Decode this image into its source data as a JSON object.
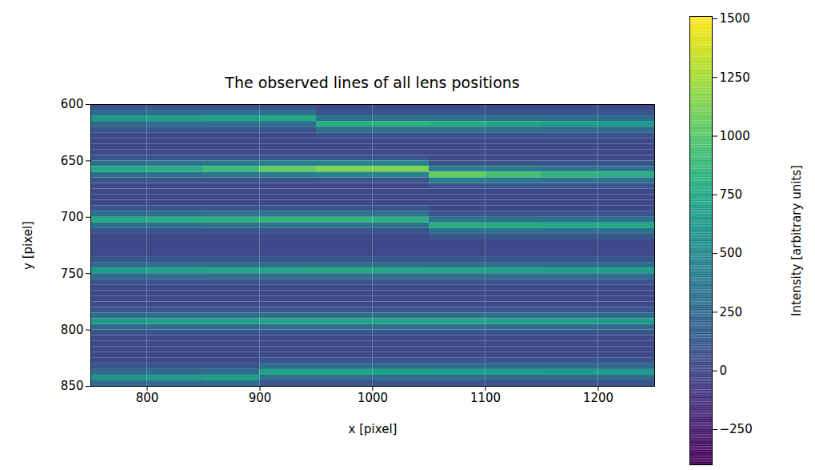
{
  "chart_data": {
    "type": "heatmap",
    "title": "The observed lines of all lens positions",
    "x_label": "x [pixel]",
    "y_label": "y [pixel]",
    "xlim": [
      750,
      1250
    ],
    "xticks": [
      800,
      900,
      1000,
      1100,
      1200
    ],
    "ylim": [
      600,
      850
    ],
    "yticks": [
      600,
      650,
      700,
      750,
      800,
      850
    ],
    "color": "viridis",
    "x_bins": [
      750,
      800,
      850,
      900,
      950,
      1000,
      1050,
      1100,
      1150,
      1200,
      1250
    ],
    "y_bins": [
      600,
      605,
      610,
      615,
      620,
      625,
      630,
      635,
      640,
      645,
      650,
      655,
      660,
      665,
      670,
      675,
      680,
      685,
      690,
      695,
      700,
      705,
      710,
      715,
      720,
      725,
      730,
      735,
      740,
      745,
      750,
      755,
      760,
      765,
      770,
      775,
      780,
      785,
      790,
      795,
      800,
      805,
      810,
      815,
      820,
      825,
      830,
      835,
      840,
      845,
      850
    ],
    "values": [
      [
        100,
        100,
        100,
        100,
        20,
        20,
        20,
        20,
        20,
        20
      ],
      [
        260,
        272,
        280,
        300,
        100,
        100,
        100,
        100,
        100,
        100
      ],
      [
        650,
        680,
        700,
        750,
        320,
        328,
        312,
        288,
        272,
        260
      ],
      [
        260,
        272,
        280,
        300,
        800,
        820,
        780,
        720,
        680,
        650
      ],
      [
        100,
        100,
        100,
        100,
        320,
        328,
        312,
        288,
        272,
        260
      ],
      [
        20,
        20,
        20,
        20,
        100,
        100,
        100,
        100,
        100,
        100
      ],
      [
        20,
        20,
        20,
        20,
        20,
        20,
        20,
        20,
        20,
        20
      ],
      [
        20,
        20,
        20,
        20,
        20,
        20,
        20,
        20,
        20,
        20
      ],
      [
        20,
        20,
        20,
        20,
        20,
        20,
        20,
        20,
        20,
        20
      ],
      [
        100,
        100,
        100,
        100,
        100,
        100,
        20,
        20,
        20,
        20
      ],
      [
        300,
        320,
        360,
        420,
        460,
        460,
        100,
        100,
        100,
        100
      ],
      [
        750,
        800,
        900,
        1050,
        1150,
        1150,
        420,
        380,
        340,
        320
      ],
      [
        300,
        320,
        360,
        420,
        460,
        460,
        1050,
        950,
        850,
        800
      ],
      [
        100,
        100,
        100,
        100,
        100,
        100,
        420,
        380,
        340,
        320
      ],
      [
        20,
        20,
        20,
        20,
        20,
        20,
        100,
        100,
        100,
        100
      ],
      [
        20,
        20,
        20,
        20,
        20,
        20,
        20,
        20,
        20,
        20
      ],
      [
        20,
        20,
        20,
        20,
        20,
        20,
        20,
        20,
        20,
        20
      ],
      [
        20,
        20,
        20,
        20,
        20,
        20,
        20,
        20,
        20,
        20
      ],
      [
        100,
        100,
        100,
        100,
        100,
        100,
        20,
        20,
        20,
        20
      ],
      [
        300,
        320,
        328,
        340,
        340,
        328,
        100,
        100,
        100,
        100
      ],
      [
        750,
        800,
        820,
        850,
        850,
        820,
        320,
        312,
        304,
        304
      ],
      [
        300,
        320,
        328,
        340,
        340,
        328,
        800,
        780,
        760,
        760
      ],
      [
        100,
        100,
        100,
        100,
        100,
        100,
        320,
        312,
        304,
        304
      ],
      [
        20,
        20,
        20,
        20,
        20,
        20,
        100,
        100,
        100,
        100
      ],
      [
        20,
        20,
        20,
        20,
        20,
        20,
        20,
        20,
        20,
        20
      ],
      [
        20,
        20,
        20,
        20,
        20,
        20,
        20,
        20,
        20,
        20
      ],
      [
        20,
        20,
        20,
        20,
        20,
        20,
        20,
        20,
        20,
        20
      ],
      [
        100,
        100,
        100,
        100,
        100,
        100,
        100,
        100,
        100,
        100
      ],
      [
        260,
        280,
        288,
        296,
        300,
        296,
        288,
        280,
        272,
        272
      ],
      [
        650,
        700,
        720,
        740,
        750,
        740,
        720,
        700,
        680,
        680
      ],
      [
        260,
        280,
        288,
        296,
        300,
        296,
        288,
        280,
        272,
        272
      ],
      [
        100,
        100,
        100,
        100,
        100,
        100,
        100,
        100,
        100,
        100
      ],
      [
        20,
        20,
        20,
        20,
        20,
        20,
        20,
        20,
        20,
        20
      ],
      [
        20,
        20,
        20,
        20,
        20,
        20,
        20,
        20,
        20,
        20
      ],
      [
        20,
        20,
        20,
        20,
        20,
        20,
        20,
        20,
        20,
        20
      ],
      [
        20,
        20,
        20,
        20,
        20,
        20,
        20,
        20,
        20,
        20
      ],
      [
        100,
        100,
        100,
        100,
        100,
        100,
        100,
        100,
        100,
        100
      ],
      [
        260,
        272,
        280,
        288,
        288,
        288,
        288,
        280,
        272,
        260
      ],
      [
        650,
        680,
        700,
        720,
        720,
        720,
        720,
        700,
        680,
        650
      ],
      [
        260,
        272,
        280,
        288,
        288,
        288,
        288,
        280,
        272,
        260
      ],
      [
        100,
        100,
        100,
        100,
        100,
        100,
        100,
        100,
        100,
        100
      ],
      [
        20,
        20,
        20,
        20,
        20,
        20,
        20,
        20,
        20,
        20
      ],
      [
        20,
        20,
        20,
        20,
        20,
        20,
        20,
        20,
        20,
        20
      ],
      [
        20,
        20,
        20,
        20,
        20,
        20,
        20,
        20,
        20,
        20
      ],
      [
        20,
        20,
        20,
        20,
        20,
        20,
        20,
        20,
        20,
        20
      ],
      [
        20,
        20,
        20,
        100,
        100,
        100,
        100,
        100,
        100,
        100
      ],
      [
        100,
        100,
        100,
        280,
        280,
        276,
        272,
        264,
        260,
        256
      ],
      [
        240,
        260,
        272,
        700,
        700,
        690,
        680,
        660,
        650,
        640
      ],
      [
        600,
        650,
        680,
        280,
        280,
        276,
        272,
        264,
        260,
        256
      ],
      [
        240,
        260,
        272,
        100,
        100,
        100,
        100,
        100,
        100,
        100
      ]
    ],
    "colorbar": {
      "label": "Intensity [arbitrary units]",
      "range": [
        -400,
        1510
      ],
      "ticks": [
        -250,
        0,
        250,
        500,
        750,
        1000,
        1250,
        1500
      ]
    }
  }
}
